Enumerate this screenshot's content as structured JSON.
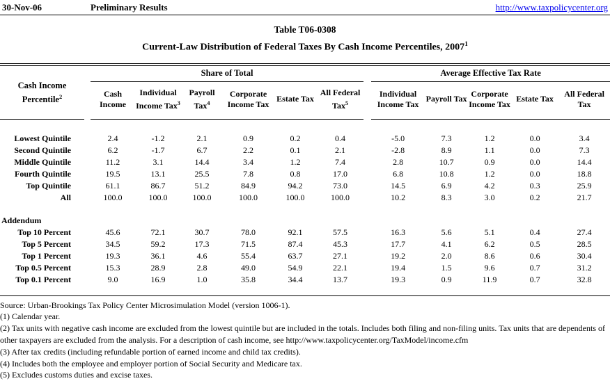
{
  "header": {
    "date": "30-Nov-06",
    "status": "Preliminary Results",
    "link": "http://www.taxpolicycenter.org"
  },
  "title": "Table T06-0308",
  "subtitle": {
    "text": "Current-Law Distribution of Federal Taxes By Cash Income Percentiles, 2007",
    "sup": "1"
  },
  "table": {
    "row_header": {
      "text": "Cash Income Percentile",
      "sup": "2"
    },
    "groups": [
      {
        "label": "Share of Total"
      },
      {
        "label": "Average Effective Tax Rate"
      }
    ],
    "columns": [
      {
        "text": "Cash Income"
      },
      {
        "text": "Individual Income Tax",
        "sup": "3"
      },
      {
        "text": "Payroll Tax",
        "sup": "4"
      },
      {
        "text": "Corporate Income Tax"
      },
      {
        "text": "Estate Tax"
      },
      {
        "text": "All Federal Tax",
        "sup": "5"
      },
      {
        "text": "Individual Income Tax"
      },
      {
        "text": "Payroll Tax"
      },
      {
        "text": "Corporate Income Tax"
      },
      {
        "text": "Estate Tax"
      },
      {
        "text": "All Federal Tax"
      }
    ],
    "rows": [
      {
        "label": "Lowest Quintile",
        "values": [
          "2.4",
          "-1.2",
          "2.1",
          "0.9",
          "0.2",
          "0.4",
          "-5.0",
          "7.3",
          "1.2",
          "0.0",
          "3.4"
        ]
      },
      {
        "label": "Second Quintile",
        "values": [
          "6.2",
          "-1.7",
          "6.7",
          "2.2",
          "0.1",
          "2.1",
          "-2.8",
          "8.9",
          "1.1",
          "0.0",
          "7.3"
        ]
      },
      {
        "label": "Middle Quintile",
        "values": [
          "11.2",
          "3.1",
          "14.4",
          "3.4",
          "1.2",
          "7.4",
          "2.8",
          "10.7",
          "0.9",
          "0.0",
          "14.4"
        ]
      },
      {
        "label": "Fourth Quintile",
        "values": [
          "19.5",
          "13.1",
          "25.5",
          "7.8",
          "0.8",
          "17.0",
          "6.8",
          "10.8",
          "1.2",
          "0.0",
          "18.8"
        ]
      },
      {
        "label": "Top Quintile",
        "values": [
          "61.1",
          "86.7",
          "51.2",
          "84.9",
          "94.2",
          "73.0",
          "14.5",
          "6.9",
          "4.2",
          "0.3",
          "25.9"
        ]
      },
      {
        "label": "All",
        "values": [
          "100.0",
          "100.0",
          "100.0",
          "100.0",
          "100.0",
          "100.0",
          "10.2",
          "8.3",
          "3.0",
          "0.2",
          "21.7"
        ]
      }
    ],
    "addendum_label": "Addendum",
    "addendum_rows": [
      {
        "label": "Top 10 Percent",
        "values": [
          "45.6",
          "72.1",
          "30.7",
          "78.0",
          "92.1",
          "57.5",
          "16.3",
          "5.6",
          "5.1",
          "0.4",
          "27.4"
        ]
      },
      {
        "label": "Top 5 Percent",
        "values": [
          "34.5",
          "59.2",
          "17.3",
          "71.5",
          "87.4",
          "45.3",
          "17.7",
          "4.1",
          "6.2",
          "0.5",
          "28.5"
        ]
      },
      {
        "label": "Top 1 Percent",
        "values": [
          "19.3",
          "36.1",
          "4.6",
          "55.4",
          "63.7",
          "27.1",
          "19.2",
          "2.0",
          "8.6",
          "0.6",
          "30.4"
        ]
      },
      {
        "label": "Top 0.5 Percent",
        "values": [
          "15.3",
          "28.9",
          "2.8",
          "49.0",
          "54.9",
          "22.1",
          "19.4",
          "1.5",
          "9.6",
          "0.7",
          "31.2"
        ]
      },
      {
        "label": "Top 0.1 Percent",
        "values": [
          "9.0",
          "16.9",
          "1.0",
          "35.8",
          "34.4",
          "13.7",
          "19.3",
          "0.9",
          "11.9",
          "0.7",
          "32.8"
        ]
      }
    ]
  },
  "footnotes": [
    "Source: Urban-Brookings Tax Policy Center Microsimulation Model (version 1006-1).",
    "(1) Calendar year.",
    "(2) Tax units with negative cash income are excluded from the lowest quintile but are included in the totals. Includes both filing and non-filing units. Tax units that are dependents of other taxpayers are excluded from the analysis. For a description of cash income, see http://www.taxpolicycenter.org/TaxModel/income.cfm",
    "(3) After tax credits (including refundable portion of earned income and child tax credits).",
    "(4) Includes both the employee and employer portion of Social Security and Medicare tax.",
    "(5) Excludes customs duties and excise taxes."
  ],
  "colors": {
    "link_blue": "#0000EE",
    "text": "#000000",
    "background": "#FFFFFF"
  }
}
